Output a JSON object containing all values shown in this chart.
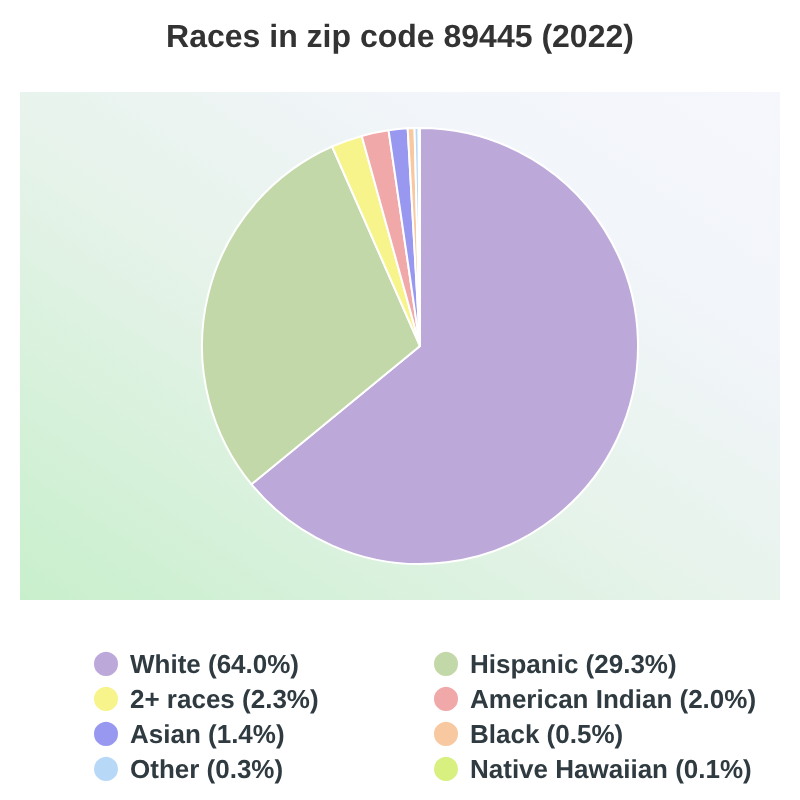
{
  "chart_data": {
    "type": "pie",
    "title": "Races in zip code 89445 (2022)",
    "categories": [
      "White (64.0%)",
      "Hispanic (29.3%)",
      "2+ races (2.3%)",
      "American Indian (2.0%)",
      "Asian (1.4%)",
      "Black (0.5%)",
      "Other (0.3%)",
      "Native Hawaiian (0.1%)"
    ],
    "values": [
      64.0,
      29.3,
      2.3,
      2.0,
      1.4,
      0.5,
      0.3,
      0.1
    ],
    "colors": [
      "#bca8d9",
      "#c3d8a8",
      "#f8f48c",
      "#f0a8a8",
      "#9898f0",
      "#f8c8a0",
      "#b8d8f8",
      "#d8f080"
    ],
    "legend": "bottom"
  }
}
